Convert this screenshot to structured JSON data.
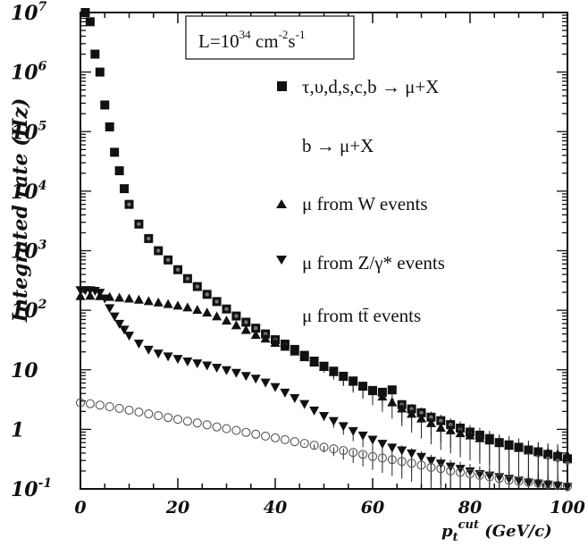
{
  "chart_data": {
    "type": "scatter",
    "title": "",
    "xlabel_main": "p",
    "xlabel_sub": "t",
    "xlabel_sup": "cut",
    "xlabel_unit": " (GeV/c)",
    "ylabel": "Integrated rate (Hz)",
    "xlim": [
      0,
      100
    ],
    "ylim": [
      0.1,
      10000000
    ],
    "log_y": true,
    "x_ticks": [
      "0",
      "20",
      "40",
      "60",
      "80",
      "100"
    ],
    "y_ticks": [
      {
        "base": "10",
        "exp": "7"
      },
      {
        "base": "10",
        "exp": "6"
      },
      {
        "base": "10",
        "exp": "5"
      },
      {
        "base": "10",
        "exp": "4"
      },
      {
        "base": "10",
        "exp": "3"
      },
      {
        "base": "10",
        "exp": "2"
      },
      {
        "base": "10",
        "exp": ""
      },
      {
        "base": "1",
        "exp": ""
      },
      {
        "base": "10",
        "exp": "-1"
      }
    ],
    "annotation": {
      "lhs": "L=10",
      "exp1": "34",
      "mid": " cm",
      "exp2": "-2",
      "mid2": "s",
      "exp3": "-1"
    },
    "legend_position": "right",
    "series": [
      {
        "name": "τ,υ,d,s,c,b → μ+X",
        "marker": "square",
        "x": [
          1,
          2,
          3,
          4,
          5,
          6,
          7,
          8,
          9,
          10,
          12,
          14,
          16,
          18,
          20,
          22,
          24,
          26,
          28,
          30,
          32,
          34,
          36,
          38,
          40,
          42,
          44,
          46,
          48,
          50,
          52,
          54,
          56,
          58,
          60,
          62,
          64,
          66,
          68,
          70,
          72,
          74,
          76,
          78,
          80,
          82,
          84,
          86,
          88,
          90,
          92,
          94,
          96,
          98,
          100
        ],
        "y": [
          10000000,
          7000000,
          2000000,
          1000000,
          280000,
          120000,
          45000,
          22000,
          11000,
          6000,
          2800,
          1600,
          1000,
          700,
          480,
          340,
          250,
          185,
          140,
          105,
          80,
          63,
          50,
          40,
          32,
          27,
          22,
          17.5,
          14,
          11.5,
          9.5,
          7.8,
          6.5,
          5.3,
          4.5,
          4.2,
          4.6,
          2.6,
          2.2,
          1.9,
          1.6,
          1.4,
          1.2,
          1.05,
          0.9,
          0.8,
          0.7,
          0.6,
          0.55,
          0.5,
          0.45,
          0.42,
          0.38,
          0.35,
          0.32
        ]
      },
      {
        "name": "b → μ+X",
        "marker": "none",
        "x": [
          10,
          12,
          14,
          16,
          18,
          20,
          22,
          24,
          26,
          28,
          30,
          32,
          34,
          36,
          38,
          40,
          42,
          44,
          46,
          48,
          50,
          52,
          54,
          56,
          58,
          60,
          62,
          64,
          66,
          68,
          70,
          72,
          74,
          76,
          78,
          80,
          82,
          84,
          86,
          88,
          90,
          92,
          94,
          96,
          98,
          100
        ],
        "y": [
          6000,
          2800,
          1600,
          1000,
          700,
          480,
          340,
          250,
          185,
          140,
          105,
          80,
          63,
          50,
          40,
          32,
          26,
          21,
          17,
          13.5,
          11,
          9,
          7.4,
          6.2,
          5,
          4.2,
          3.6,
          3.1,
          2.6,
          2.2,
          1.9,
          1.6,
          1.4,
          1.2,
          1.0,
          0.85,
          0.75,
          0.65,
          0.58,
          0.5,
          0.45,
          0.4,
          0.36,
          0.33,
          0.3,
          0.27
        ]
      },
      {
        "name": "μ from W events",
        "marker": "triangle-up",
        "x": [
          0,
          2,
          4,
          6,
          8,
          10,
          12,
          14,
          16,
          18,
          20,
          22,
          24,
          26,
          28,
          30,
          32,
          34,
          36,
          38,
          40,
          42,
          44,
          46,
          48,
          50,
          52,
          54,
          56,
          58,
          60,
          62,
          64,
          66,
          68,
          70,
          72,
          74,
          76,
          78,
          80,
          82,
          84,
          86,
          88,
          90,
          92,
          94,
          96,
          98,
          100
        ],
        "y": [
          170,
          172,
          170,
          165,
          160,
          155,
          148,
          140,
          133,
          125,
          118,
          110,
          100,
          90,
          78,
          66,
          55,
          46,
          38,
          33,
          28,
          24,
          20,
          16,
          13,
          11,
          9,
          7.5,
          6.2,
          5.2,
          4.3,
          3.5,
          2.8,
          2.2,
          1.8,
          1.5,
          1.25,
          1.05,
          0.95,
          0.85,
          0.78,
          0.7,
          0.64,
          0.58,
          0.52,
          0.48,
          0.45,
          0.42,
          0.4,
          0.38,
          0.36
        ]
      },
      {
        "name": "μ from Z/γ* events",
        "marker": "triangle-down",
        "x": [
          0,
          1,
          2,
          3,
          4,
          5,
          6,
          7,
          8,
          9,
          10,
          12,
          14,
          16,
          18,
          20,
          22,
          24,
          26,
          28,
          30,
          32,
          34,
          36,
          38,
          40,
          42,
          44,
          46,
          48,
          50,
          52,
          54,
          56,
          58,
          60,
          62,
          64,
          66,
          68,
          70,
          72,
          74,
          76,
          78,
          80,
          82,
          84,
          86,
          88,
          90,
          92,
          94,
          96,
          98,
          100
        ],
        "y": [
          220,
          220,
          220,
          215,
          200,
          160,
          110,
          80,
          60,
          48,
          38,
          28,
          22,
          19,
          17,
          15.5,
          14,
          13,
          12,
          11,
          10,
          9,
          8,
          7.2,
          6.2,
          5.2,
          4.2,
          3.4,
          2.7,
          2.1,
          1.7,
          1.4,
          1.15,
          0.95,
          0.8,
          0.68,
          0.58,
          0.5,
          0.45,
          0.4,
          0.35,
          0.3,
          0.27,
          0.24,
          0.22,
          0.2,
          0.18,
          0.17,
          0.16,
          0.15,
          0.14,
          0.13,
          0.125,
          0.12,
          0.115,
          0.11
        ]
      },
      {
        "name": "μ from tt̄ events",
        "marker": "circle",
        "x": [
          0,
          2,
          4,
          6,
          8,
          10,
          12,
          14,
          16,
          18,
          20,
          22,
          24,
          26,
          28,
          30,
          32,
          34,
          36,
          38,
          40,
          42,
          44,
          46,
          48,
          50,
          52,
          54,
          56,
          58,
          60,
          62,
          64,
          66,
          68,
          70,
          72,
          74,
          76,
          78,
          80,
          82,
          84,
          86,
          88,
          90,
          92,
          94,
          96,
          98,
          100
        ],
        "y": [
          2.8,
          2.7,
          2.55,
          2.4,
          2.25,
          2.1,
          1.95,
          1.82,
          1.7,
          1.58,
          1.47,
          1.37,
          1.28,
          1.19,
          1.1,
          1.03,
          0.96,
          0.89,
          0.83,
          0.77,
          0.72,
          0.67,
          0.62,
          0.58,
          0.54,
          0.5,
          0.47,
          0.44,
          0.41,
          0.38,
          0.35,
          0.33,
          0.31,
          0.29,
          0.27,
          0.25,
          0.23,
          0.22,
          0.2,
          0.19,
          0.18,
          0.17,
          0.16,
          0.15,
          0.14,
          0.135,
          0.13,
          0.125,
          0.12,
          0.115,
          0.11
        ]
      }
    ]
  }
}
